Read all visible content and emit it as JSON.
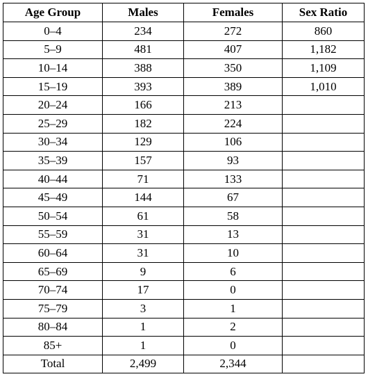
{
  "table": {
    "headers": [
      "Age Group",
      "Males",
      "Females",
      "Sex Ratio"
    ],
    "rows": [
      [
        "0–4",
        "234",
        "272",
        "860"
      ],
      [
        "5–9",
        "481",
        "407",
        "1,182"
      ],
      [
        "10–14",
        "388",
        "350",
        "1,109"
      ],
      [
        "15–19",
        "393",
        "389",
        "1,010"
      ],
      [
        "20–24",
        "166",
        "213",
        ""
      ],
      [
        "25–29",
        "182",
        "224",
        ""
      ],
      [
        "30–34",
        "129",
        "106",
        ""
      ],
      [
        "35–39",
        "157",
        "93",
        ""
      ],
      [
        "40–44",
        "71",
        "133",
        ""
      ],
      [
        "45–49",
        "144",
        "67",
        ""
      ],
      [
        "50–54",
        "61",
        "58",
        ""
      ],
      [
        "55–59",
        "31",
        "13",
        ""
      ],
      [
        "60–64",
        "31",
        "10",
        ""
      ],
      [
        "65–69",
        "9",
        "6",
        ""
      ],
      [
        "70–74",
        "17",
        "0",
        ""
      ],
      [
        "75–79",
        "3",
        "1",
        ""
      ],
      [
        "80–84",
        "1",
        "2",
        ""
      ],
      [
        "85+",
        "1",
        "0",
        ""
      ],
      [
        "Total",
        "2,499",
        "2,344",
        ""
      ]
    ]
  }
}
